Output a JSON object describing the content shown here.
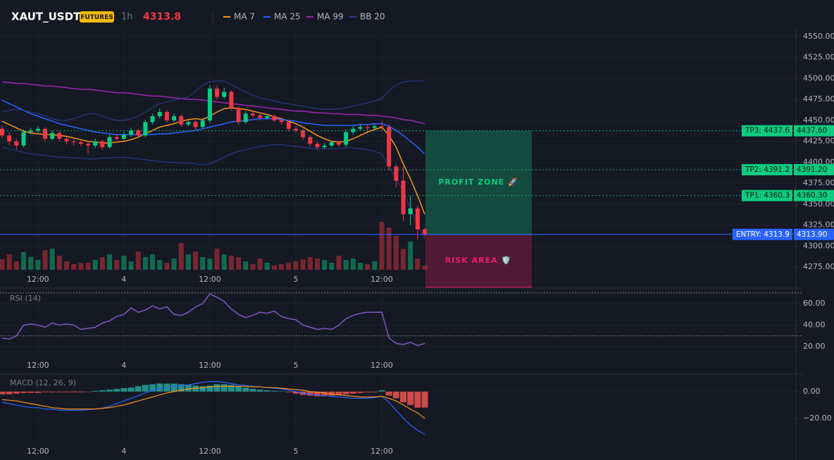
{
  "chart_data": [
    {
      "type": "candlestick",
      "title": "XAUT_USDT",
      "badge": "FUTURES",
      "interval": "1h",
      "last_price": 4313.8,
      "categories": [
        null,
        null,
        null,
        null,
        null,
        "12:00",
        null,
        null,
        null,
        null,
        null,
        null,
        null,
        null,
        null,
        null,
        null,
        "4",
        null,
        null,
        null,
        null,
        null,
        null,
        null,
        null,
        null,
        null,
        null,
        "12:00",
        null,
        null,
        null,
        null,
        null,
        null,
        null,
        null,
        null,
        null,
        null,
        "5",
        null,
        null,
        null,
        null,
        null,
        null,
        null,
        null,
        null,
        null,
        null,
        "12:00",
        null,
        null,
        null,
        null,
        null,
        null
      ],
      "open": [
        4440,
        4432,
        4425,
        4420,
        4436,
        4438,
        4440,
        4428,
        4435,
        4428,
        4425,
        4424,
        4422,
        4420,
        4425,
        4418,
        4430,
        4428,
        4433,
        4438,
        4432,
        4448,
        4455,
        4460,
        4450,
        4455,
        4445,
        4448,
        4442,
        4450,
        4488,
        4478,
        4484,
        4465,
        4448,
        4458,
        4456,
        4453,
        4455,
        4450,
        4448,
        4440,
        4438,
        4430,
        4422,
        4418,
        4420,
        4424,
        4421,
        4436,
        4440,
        4442,
        4441,
        4443,
        4442,
        4395,
        4378,
        4338,
        4345,
        4320
      ],
      "high": [
        4444,
        4436,
        4428,
        4439,
        4441,
        4443,
        4442,
        4438,
        4437,
        4430,
        4428,
        4427,
        4424,
        4428,
        4427,
        4433,
        4434,
        4436,
        4441,
        4440,
        4451,
        4458,
        4464,
        4462,
        4458,
        4457,
        4450,
        4450,
        4453,
        4492,
        4491,
        4489,
        4486,
        4467,
        4461,
        4460,
        4458,
        4457,
        4457,
        4453,
        4450,
        4443,
        4440,
        4432,
        4425,
        4423,
        4426,
        4426,
        4439,
        4443,
        4445,
        4445,
        4446,
        4449,
        4445,
        4398,
        4395,
        4360,
        4348,
        4322
      ],
      "low": [
        4429,
        4421,
        4415,
        4418,
        4433,
        4435,
        4425,
        4426,
        4425,
        4421,
        4420,
        4419,
        4410,
        4417,
        4415,
        4416,
        4426,
        4426,
        4430,
        4429,
        4430,
        4445,
        4452,
        4447,
        4448,
        4442,
        4443,
        4439,
        4440,
        4447,
        4475,
        4476,
        4462,
        4445,
        4446,
        4453,
        4450,
        4451,
        4448,
        4445,
        4437,
        4435,
        4427,
        4419,
        4415,
        4416,
        4418,
        4418,
        4418,
        4433,
        4438,
        4438,
        4439,
        4439,
        4390,
        4370,
        4330,
        4325,
        4308,
        4311
      ],
      "close": [
        4432,
        4425,
        4420,
        4436,
        4438,
        4440,
        4428,
        4435,
        4428,
        4425,
        4424,
        4422,
        4420,
        4425,
        4418,
        4430,
        4428,
        4433,
        4438,
        4432,
        4448,
        4455,
        4460,
        4450,
        4455,
        4445,
        4448,
        4442,
        4450,
        4488,
        4478,
        4484,
        4465,
        4448,
        4458,
        4456,
        4453,
        4455,
        4450,
        4448,
        4440,
        4438,
        4430,
        4422,
        4418,
        4420,
        4424,
        4421,
        4436,
        4440,
        4442,
        4441,
        4443,
        4442,
        4395,
        4378,
        4338,
        4345,
        4320,
        4313.8
      ],
      "volume": [
        15,
        22,
        12,
        25,
        18,
        14,
        28,
        30,
        20,
        12,
        8,
        10,
        10,
        14,
        18,
        22,
        14,
        20,
        12,
        26,
        18,
        22,
        14,
        10,
        16,
        38,
        22,
        26,
        18,
        16,
        30,
        22,
        20,
        18,
        12,
        8,
        16,
        10,
        6,
        8,
        10,
        12,
        15,
        18,
        16,
        14,
        10,
        20,
        14,
        16,
        10,
        8,
        12,
        68,
        60,
        48,
        30,
        40,
        16,
        6
      ],
      "up_color": "#0ecb81",
      "down_color": "#f23645",
      "series": [
        {
          "name": "MA 7",
          "color": "#f7931a",
          "values": [
            4449,
            4445,
            4441,
            4437,
            4435,
            4434,
            4433,
            4433,
            4432,
            4431,
            4429,
            4427,
            4425,
            4424,
            4423,
            4423,
            4424,
            4425,
            4427,
            4430,
            4434,
            4438,
            4442,
            4444,
            4446,
            4449,
            4451,
            4452,
            4451,
            4455,
            4460,
            4464,
            4465,
            4464,
            4463,
            4461,
            4459,
            4457,
            4454,
            4452,
            4449,
            4446,
            4442,
            4437,
            4432,
            4428,
            4425,
            4424,
            4425,
            4428,
            4432,
            4436,
            4439,
            4442,
            4432,
            4418,
            4398,
            4380,
            4360,
            4338
          ]
        },
        {
          "name": "MA 25",
          "color": "#2962ff",
          "values": [
            4474,
            4470,
            4466,
            4462,
            4458,
            4455,
            4452,
            4449,
            4446,
            4444,
            4442,
            4440,
            4438,
            4436,
            4435,
            4434,
            4433,
            4433,
            4433,
            4433,
            4433,
            4433,
            4434,
            4434,
            4435,
            4436,
            4437,
            4438,
            4440,
            4442,
            4444,
            4446,
            4448,
            4449,
            4450,
            4451,
            4452,
            4452,
            4452,
            4451,
            4450,
            4449,
            4447,
            4446,
            4445,
            4444,
            4444,
            4444,
            4444,
            4444,
            4445,
            4445,
            4446,
            4446,
            4443,
            4438,
            4432,
            4425,
            4418,
            4410
          ]
        },
        {
          "name": "MA 99",
          "color": "#9c27b0",
          "values": [
            4496,
            4495,
            4494,
            4494,
            4493,
            4492,
            4491,
            4491,
            4490,
            4489,
            4488,
            4487,
            4487,
            4486,
            4485,
            4484,
            4483,
            4483,
            4482,
            4481,
            4480,
            4479,
            4479,
            4478,
            4477,
            4476,
            4475,
            4475,
            4474,
            4473,
            4472,
            4471,
            4470,
            4469,
            4468,
            4467,
            4466,
            4465,
            4464,
            4463,
            4462,
            4461,
            4461,
            4460,
            4459,
            4459,
            4458,
            4458,
            4457,
            4457,
            4457,
            4456,
            4456,
            4455,
            4454,
            4453,
            4451,
            4450,
            4448,
            4446
          ]
        },
        {
          "name": "BB 20",
          "color": "#2a3f8f",
          "upper": [
            4460,
            4462,
            4463,
            4462,
            4460,
            4458,
            4455,
            4452,
            4450,
            4450,
            4452,
            4455,
            4458,
            4458,
            4455,
            4452,
            4450,
            4450,
            4452,
            4455,
            4460,
            4465,
            4470,
            4472,
            4474,
            4476,
            4478,
            4485,
            4492,
            4496,
            4497,
            4497,
            4493,
            4488,
            4484,
            4480,
            4477,
            4475,
            4473,
            4471,
            4470,
            4468,
            4467,
            4465,
            4464,
            4463,
            4463,
            4464,
            4465,
            4467,
            4469,
            4471,
            4473,
            4476,
            4485,
            4492,
            4496,
            4497,
            4497,
            4497
          ],
          "lower": [
            4418,
            4416,
            4414,
            4412,
            4410,
            4409,
            4408,
            4407,
            4406,
            4406,
            4405,
            4405,
            4404,
            4404,
            4405,
            4405,
            4406,
            4406,
            4405,
            4404,
            4403,
            4402,
            4401,
            4400,
            4400,
            4399,
            4399,
            4398,
            4397,
            4398,
            4402,
            4406,
            4410,
            4413,
            4415,
            4417,
            4419,
            4420,
            4421,
            4421,
            4420,
            4419,
            4418,
            4417,
            4416,
            4416,
            4416,
            4416,
            4417,
            4417,
            4416,
            4415,
            4413,
            4410,
            4395,
            4380,
            4365,
            4345,
            4325,
            4308
          ]
        }
      ],
      "ylim": [
        4249,
        4560
      ],
      "yticks": [
        {
          "value": 4275,
          "label": "4275.00"
        },
        {
          "value": 4300,
          "label": "4300.00"
        },
        {
          "value": 4325,
          "label": "4325.00"
        },
        {
          "value": 4350,
          "label": "4350.00"
        },
        {
          "value": 4375,
          "label": "4375.00"
        },
        {
          "value": 4400,
          "label": "4400.00"
        },
        {
          "value": 4425,
          "label": "4425.00"
        },
        {
          "value": 4450,
          "label": "4450.00"
        },
        {
          "value": 4475,
          "label": "4475.00"
        },
        {
          "value": 4500,
          "label": "4500.00"
        },
        {
          "value": 4525,
          "label": "4525.00"
        },
        {
          "value": 4550,
          "label": "4550.00"
        }
      ],
      "levels": [
        {
          "value": 4437.6,
          "label": "TP3: 4437.6",
          "axis_label": "4437.60",
          "color": "#0ecb81",
          "line": "dotted"
        },
        {
          "value": 4391.2,
          "label": "TP2: 4391.2",
          "axis_label": "4391.20",
          "color": "#0ecb81",
          "line": "dotted"
        },
        {
          "value": 4360.3,
          "label": "TP1: 4360.3",
          "axis_label": "4360.30",
          "color": "#0ecb81",
          "line": "dotted"
        },
        {
          "value": 4313.9,
          "label": "ENTRY: 4313.9",
          "axis_label": "4313.90",
          "color": "#2962ff",
          "line": "solid"
        }
      ],
      "zones": [
        {
          "label": "PROFIT ZONE 🚀",
          "from": 4313.9,
          "to": 4437.6,
          "color": "#0ecb81"
        },
        {
          "label": "RISK AREA 🛡️",
          "from": 4251,
          "to": 4313.9,
          "color": "#e91e63"
        }
      ]
    },
    {
      "type": "line",
      "title": "RSI (14)",
      "color": "#7e57c2",
      "values": [
        28,
        27,
        30,
        40,
        41,
        40,
        38,
        42,
        40,
        41,
        40,
        36,
        37,
        38,
        42,
        44,
        48,
        50,
        56,
        52,
        54,
        58,
        55,
        57,
        50,
        49,
        52,
        57,
        60,
        69,
        66,
        62,
        55,
        50,
        47,
        49,
        52,
        51,
        53,
        48,
        46,
        45,
        40,
        38,
        36,
        37,
        36,
        40,
        46,
        49,
        51,
        52,
        52,
        52,
        28,
        23,
        22,
        24,
        21,
        23
      ],
      "bands": [
        70,
        30
      ],
      "ylim": [
        11.5,
        70.5
      ],
      "yticks": [
        {
          "value": 20,
          "label": "20.00"
        },
        {
          "value": 40,
          "label": "40.00"
        },
        {
          "value": 60,
          "label": "60.00"
        }
      ]
    },
    {
      "type": "macd",
      "title": "MACD (12, 26, 9)",
      "histogram": [
        -2,
        -2,
        -1.5,
        -1,
        -1,
        -1,
        -0.5,
        -0.5,
        -0.5,
        -0.5,
        -0.5,
        -0.5,
        -0.3,
        0.5,
        1,
        1.5,
        2,
        2.5,
        3,
        4,
        5,
        5.5,
        6,
        6,
        6,
        5.5,
        5,
        4.5,
        4,
        4.5,
        5.5,
        5.5,
        5,
        4,
        3,
        2,
        1.5,
        1,
        0.5,
        0.3,
        -0.5,
        -1.5,
        -2.5,
        -3,
        -3.5,
        -3.5,
        -3,
        -2.5,
        -2,
        -1.5,
        -1,
        -0.5,
        -0.5,
        1,
        -3,
        -5,
        -8,
        -10,
        -12,
        -12
      ],
      "macd": [
        -8,
        -9,
        -10,
        -11,
        -12,
        -12,
        -13,
        -13,
        -14,
        -14,
        -14,
        -14,
        -13.5,
        -13,
        -12.5,
        -11,
        -9,
        -7,
        -5,
        -3,
        -1,
        1,
        2,
        3,
        4,
        4.5,
        5,
        6,
        7,
        7.5,
        7.5,
        7,
        6,
        5,
        4.5,
        4,
        3.5,
        3,
        2.5,
        2,
        1,
        0,
        -1,
        -2,
        -2.5,
        -3,
        -3.5,
        -4,
        -4.5,
        -5,
        -5,
        -5,
        -4.5,
        -3.5,
        -8,
        -14,
        -20,
        -25,
        -29,
        -32
      ],
      "signal": [
        -6,
        -6.5,
        -7,
        -8,
        -9,
        -10,
        -11,
        -12,
        -12.5,
        -13,
        -13,
        -13,
        -13,
        -13,
        -12.5,
        -12,
        -11,
        -10,
        -8.5,
        -7,
        -5.5,
        -4,
        -2.5,
        -1,
        0,
        1,
        2,
        2.5,
        3,
        3.5,
        4,
        4,
        4,
        4,
        4,
        3.5,
        3.5,
        3,
        3,
        2.5,
        2,
        1.5,
        1,
        0,
        -0.5,
        -1,
        -2,
        -2.5,
        -3,
        -3.5,
        -4,
        -4,
        -4,
        -3.5,
        -5,
        -7,
        -10,
        -13,
        -16,
        -20
      ],
      "pos_color": "#26a69a",
      "neg_color": "#ef5350",
      "macd_color": "#2962ff",
      "signal_color": "#f7931a",
      "ylim": [
        -38,
        11
      ],
      "yticks": [
        {
          "value": 0,
          "label": "0.00"
        },
        {
          "value": -20,
          "label": "−20.00"
        }
      ]
    }
  ]
}
